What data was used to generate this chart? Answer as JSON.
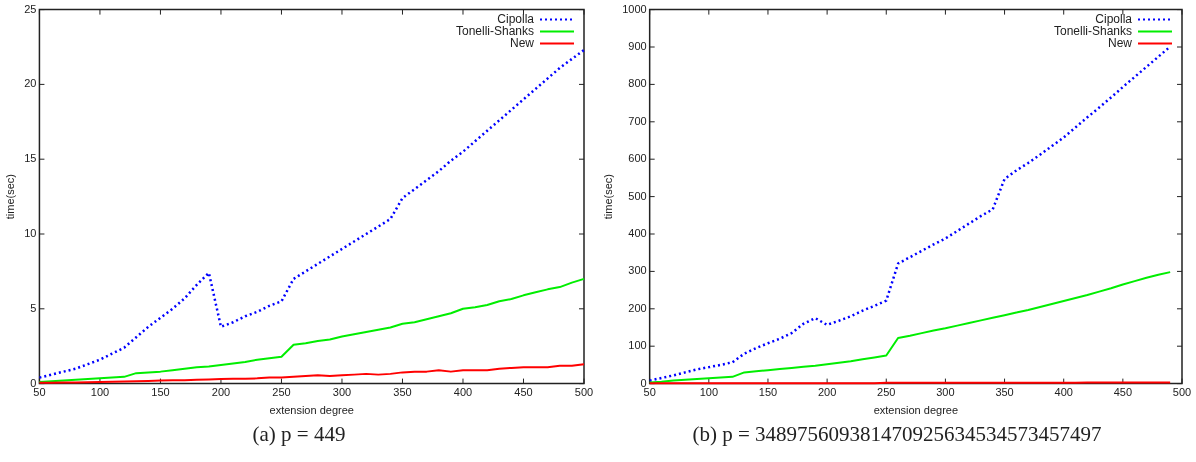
{
  "chart_data": [
    {
      "type": "line",
      "title": "(a) p = 449",
      "xlabel": "extension degree",
      "ylabel": "time(sec)",
      "xlim": [
        50,
        500
      ],
      "xticks": [
        50,
        100,
        150,
        200,
        250,
        300,
        350,
        400,
        450,
        500
      ],
      "ylim": [
        0,
        25
      ],
      "yticks": [
        0,
        5,
        10,
        15,
        20,
        25
      ],
      "grid": false,
      "legend": "top right",
      "marker": "none",
      "x": [
        50,
        60,
        70,
        80,
        90,
        100,
        110,
        120,
        130,
        140,
        150,
        160,
        170,
        180,
        190,
        200,
        210,
        220,
        230,
        240,
        250,
        260,
        270,
        280,
        290,
        300,
        310,
        320,
        330,
        340,
        350,
        360,
        370,
        380,
        390,
        400,
        410,
        420,
        430,
        440,
        450,
        460,
        470,
        480,
        490,
        500
      ],
      "series": [
        {
          "name": "Cipolla",
          "color": "#0000ff",
          "line_style": "dotted",
          "values": [
            0.4,
            0.6,
            0.8,
            1.0,
            1.3,
            1.6,
            2.0,
            2.4,
            3.1,
            3.8,
            4.4,
            5.0,
            5.7,
            6.6,
            7.4,
            3.8,
            4.1,
            4.5,
            4.8,
            5.2,
            5.5,
            7.0,
            7.5,
            8.0,
            8.5,
            9.0,
            9.5,
            10.0,
            10.5,
            11.0,
            12.4,
            13.0,
            13.6,
            14.2,
            14.9,
            15.5,
            16.2,
            16.9,
            17.6,
            18.3,
            19.0,
            19.7,
            20.4,
            21.1,
            21.7,
            22.3
          ]
        },
        {
          "name": "Tonelli-Shanks",
          "color": "#00ee00",
          "line_style": "solid",
          "values": [
            0.1,
            0.15,
            0.2,
            0.25,
            0.3,
            0.35,
            0.4,
            0.45,
            0.7,
            0.75,
            0.8,
            0.9,
            1.0,
            1.1,
            1.15,
            1.25,
            1.35,
            1.45,
            1.6,
            1.7,
            1.8,
            2.6,
            2.7,
            2.85,
            2.95,
            3.15,
            3.3,
            3.45,
            3.6,
            3.75,
            4.0,
            4.1,
            4.3,
            4.5,
            4.7,
            5.0,
            5.1,
            5.25,
            5.5,
            5.65,
            5.9,
            6.1,
            6.3,
            6.45,
            6.75,
            7.0
          ]
        },
        {
          "name": "New",
          "color": "#ff0000",
          "line_style": "solid",
          "values": [
            0.05,
            0.06,
            0.07,
            0.08,
            0.09,
            0.1,
            0.12,
            0.14,
            0.16,
            0.18,
            0.2,
            0.22,
            0.22,
            0.25,
            0.28,
            0.3,
            0.32,
            0.33,
            0.35,
            0.4,
            0.4,
            0.45,
            0.5,
            0.55,
            0.5,
            0.55,
            0.6,
            0.65,
            0.6,
            0.65,
            0.75,
            0.8,
            0.8,
            0.9,
            0.8,
            0.9,
            0.9,
            0.9,
            1.0,
            1.05,
            1.1,
            1.1,
            1.1,
            1.2,
            1.2,
            1.3
          ]
        }
      ]
    },
    {
      "type": "line",
      "title": "(b) p = 348975609381470925634534573457497",
      "xlabel": "extension degree",
      "ylabel": "time(sec)",
      "xlim": [
        50,
        500
      ],
      "xticks": [
        50,
        100,
        150,
        200,
        250,
        300,
        350,
        400,
        450,
        500
      ],
      "ylim": [
        0,
        1000
      ],
      "yticks": [
        0,
        100,
        200,
        300,
        400,
        500,
        600,
        700,
        800,
        900,
        1000
      ],
      "grid": false,
      "legend": "top right",
      "marker": "none",
      "x": [
        50,
        60,
        70,
        80,
        90,
        100,
        110,
        120,
        130,
        140,
        150,
        160,
        170,
        180,
        190,
        200,
        210,
        220,
        230,
        240,
        250,
        260,
        270,
        280,
        290,
        300,
        310,
        320,
        330,
        340,
        350,
        360,
        370,
        380,
        390,
        400,
        410,
        420,
        430,
        440,
        450,
        460,
        470,
        480,
        490
      ],
      "series": [
        {
          "name": "Cipolla",
          "color": "#0000ff",
          "line_style": "dotted",
          "values": [
            8,
            15,
            22,
            30,
            38,
            44,
            50,
            57,
            80,
            95,
            108,
            120,
            135,
            160,
            175,
            157,
            168,
            180,
            195,
            208,
            222,
            321,
            338,
            355,
            372,
            388,
            408,
            428,
            448,
            466,
            547,
            570,
            590,
            612,
            635,
            658,
            685,
            712,
            738,
            765,
            793,
            820,
            847,
            874,
            901
          ]
        },
        {
          "name": "Tonelli-Shanks",
          "color": "#00ee00",
          "line_style": "solid",
          "values": [
            3,
            5,
            8,
            10,
            12,
            14,
            16,
            18,
            30,
            33,
            36,
            39,
            42,
            45,
            48,
            52,
            56,
            60,
            65,
            70,
            75,
            122,
            128,
            135,
            142,
            148,
            155,
            162,
            169,
            176,
            183,
            190,
            197,
            205,
            213,
            221,
            229,
            237,
            246,
            255,
            265,
            274,
            283,
            291,
            298
          ]
        },
        {
          "name": "New",
          "color": "#ff0000",
          "line_style": "solid",
          "values": [
            1,
            1,
            1,
            1,
            1,
            1,
            1,
            1,
            1,
            1,
            1,
            1,
            1,
            1,
            1,
            1,
            1,
            1,
            1,
            1,
            2,
            2,
            2,
            2,
            2,
            2,
            2,
            2,
            2,
            2,
            2,
            2,
            2,
            2,
            2,
            2,
            2,
            3,
            3,
            3,
            3,
            3,
            3,
            3,
            3
          ]
        }
      ]
    }
  ]
}
